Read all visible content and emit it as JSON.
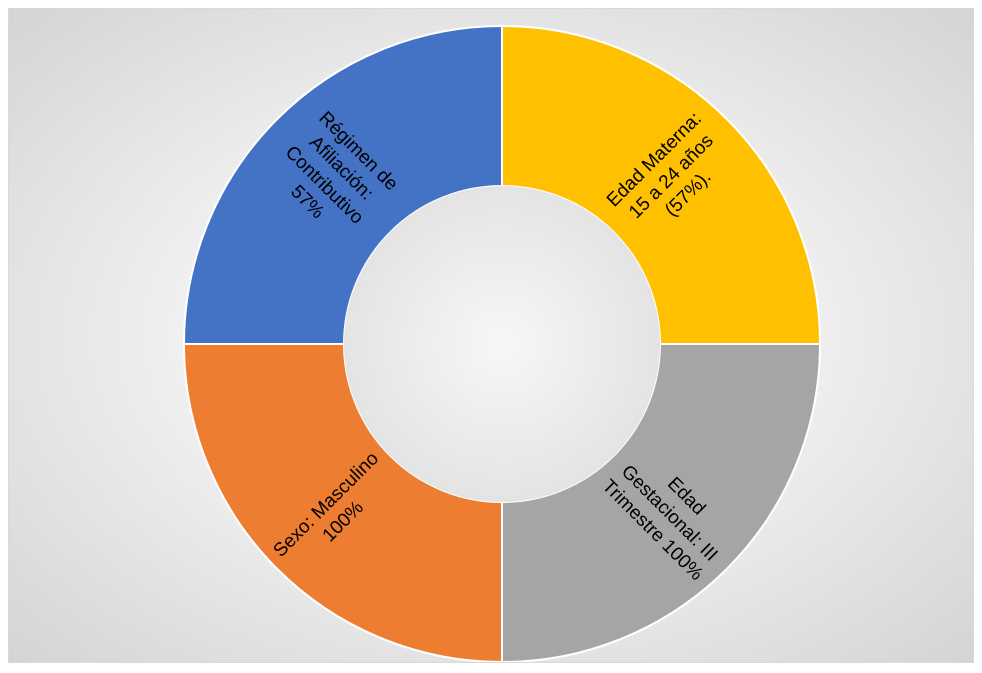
{
  "chart_data": {
    "type": "pie",
    "subtype": "donut",
    "title": "",
    "legend": "none",
    "slices": [
      {
        "label_lines": [
          "Edad Materna:",
          "15 a 24 años",
          "(57%)."
        ],
        "value": 25,
        "color": "#FFC000"
      },
      {
        "label_lines": [
          "Edad",
          "Gestacional: III",
          "Trimestre 100%"
        ],
        "value": 25,
        "color": "#A5A5A5"
      },
      {
        "label_lines": [
          "Sexo: Masculino",
          "100%"
        ],
        "value": 25,
        "color": "#ED7D31"
      },
      {
        "label_lines": [
          "Régimen de",
          "Afiliación:",
          "Contributivo",
          "57%"
        ],
        "value": 25,
        "color": "#4472C4"
      }
    ]
  }
}
